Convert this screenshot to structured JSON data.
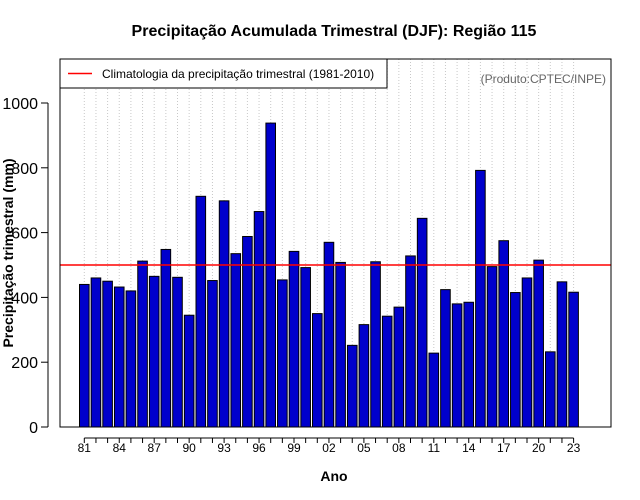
{
  "colors": {
    "bar_fill": "#0000cc",
    "bar_stroke": "#000000",
    "climatology_line": "#ff0000",
    "grid": "#c8c8c8",
    "credit_text": "#666666"
  },
  "chart_data": {
    "type": "bar",
    "title": "Precipitação Acumulada Trimestral (DJF): Região 115",
    "xlabel": "Ano",
    "ylabel": "Precipitação trimestral (mm)",
    "credit": "(Produto:CPTEC/INPE)",
    "ylim": [
      0,
      1100
    ],
    "yticks": [
      0,
      200,
      400,
      600,
      800,
      1000
    ],
    "grid": "vertical dotted",
    "legend": {
      "position": "top-left",
      "entries": [
        {
          "label": "Climatologia da precipitação trimestral (1981-2010)",
          "type": "line",
          "color": "#ff0000"
        }
      ]
    },
    "climatology": 500,
    "categories": [
      "1981",
      "1982",
      "1983",
      "1984",
      "1985",
      "1986",
      "1987",
      "1988",
      "1989",
      "1990",
      "1991",
      "1992",
      "1993",
      "1994",
      "1995",
      "1996",
      "1997",
      "1998",
      "1999",
      "2000",
      "2001",
      "2002",
      "2003",
      "2004",
      "2005",
      "2006",
      "2007",
      "2008",
      "2009",
      "2010",
      "2011",
      "2012",
      "2013",
      "2014",
      "2015",
      "2016",
      "2017",
      "2018",
      "2019",
      "2020",
      "2021",
      "2022",
      "2023"
    ],
    "values": [
      440,
      460,
      450,
      432,
      420,
      512,
      465,
      548,
      462,
      345,
      712,
      452,
      698,
      535,
      588,
      665,
      938,
      454,
      542,
      492,
      350,
      570,
      508,
      252,
      316,
      510,
      342,
      370,
      528,
      644,
      228,
      424,
      380,
      385,
      792,
      495,
      575,
      415,
      460,
      515,
      232,
      448,
      416
    ],
    "xtick_labels": [
      {
        "index": 0,
        "label": "81"
      },
      {
        "index": 3,
        "label": "84"
      },
      {
        "index": 6,
        "label": "87"
      },
      {
        "index": 9,
        "label": "90"
      },
      {
        "index": 12,
        "label": "93"
      },
      {
        "index": 15,
        "label": "96"
      },
      {
        "index": 18,
        "label": "99"
      },
      {
        "index": 21,
        "label": "02"
      },
      {
        "index": 24,
        "label": "05"
      },
      {
        "index": 27,
        "label": "08"
      },
      {
        "index": 30,
        "label": "11"
      },
      {
        "index": 33,
        "label": "14"
      },
      {
        "index": 36,
        "label": "17"
      },
      {
        "index": 39,
        "label": "20"
      },
      {
        "index": 42,
        "label": "23"
      }
    ]
  }
}
